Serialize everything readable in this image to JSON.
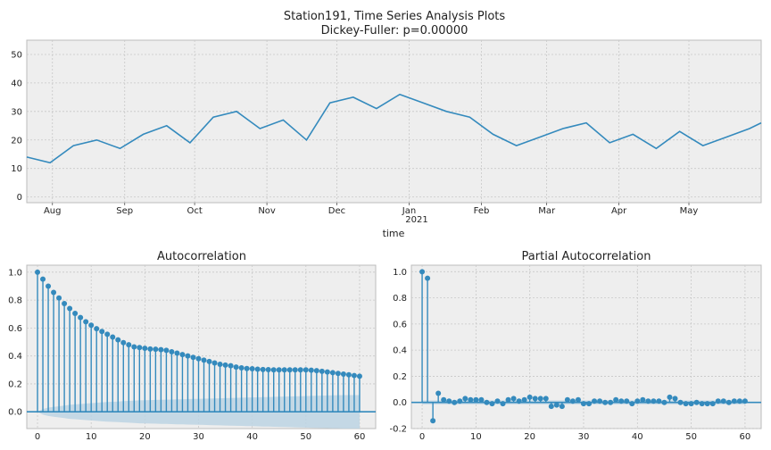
{
  "figure": {
    "suptitle_line1": "Station191, Time Series Analysis Plots",
    "suptitle_line2": "Dickey-Fuller: p=0.00000"
  },
  "colors": {
    "series": "#348abd",
    "panel_bg": "#eeeeee",
    "grid": "#c8c8c8",
    "confidence_band": "#bcd3e3"
  },
  "chart_data": [
    {
      "type": "line",
      "title": "",
      "xlabel": "time",
      "ylabel": "",
      "ylim": [
        -2,
        55
      ],
      "yticks": [
        0,
        10,
        20,
        30,
        40,
        50
      ],
      "xtick_labels": [
        "Aug",
        "Sep",
        "Oct",
        "Nov",
        "Dec",
        "Jan",
        "Feb",
        "Mar",
        "Apr",
        "May"
      ],
      "xtick_sublabel": "2021",
      "x_range": [
        "2020-07-21",
        "2021-06-01"
      ],
      "series": [
        {
          "x": [
            "2020-07-21",
            "2020-07-31",
            "2020-08-10",
            "2020-08-20",
            "2020-08-30",
            "2020-09-09",
            "2020-09-19",
            "2020-09-29",
            "2020-10-09",
            "2020-10-19",
            "2020-10-29",
            "2020-11-08",
            "2020-11-18",
            "2020-11-28",
            "2020-12-08",
            "2020-12-18",
            "2020-12-28",
            "2021-01-07",
            "2021-01-17",
            "2021-01-27",
            "2021-02-06",
            "2021-02-16",
            "2021-02-26",
            "2021-03-08",
            "2021-03-18",
            "2021-03-28",
            "2021-04-07",
            "2021-04-17",
            "2021-04-27",
            "2021-05-07",
            "2021-05-17",
            "2021-05-27",
            "2021-06-01"
          ],
          "values": [
            14,
            12,
            18,
            20,
            17,
            22,
            25,
            19,
            28,
            30,
            24,
            27,
            20,
            33,
            35,
            31,
            36,
            33,
            30,
            28,
            22,
            18,
            21,
            24,
            26,
            19,
            22,
            17,
            23,
            18,
            21,
            24,
            26
          ]
        }
      ]
    },
    {
      "type": "bar",
      "title": "Autocorrelation",
      "xlabel": "",
      "ylabel": "",
      "xlim": [
        -2,
        63
      ],
      "ylim": [
        -0.12,
        1.05
      ],
      "xticks": [
        0,
        10,
        20,
        30,
        40,
        50,
        60
      ],
      "yticks": [
        0.0,
        0.2,
        0.4,
        0.6,
        0.8,
        1.0
      ],
      "lags": [
        0,
        1,
        2,
        3,
        4,
        5,
        6,
        7,
        8,
        9,
        10,
        11,
        12,
        13,
        14,
        15,
        16,
        17,
        18,
        19,
        20,
        21,
        22,
        23,
        24,
        25,
        26,
        27,
        28,
        29,
        30,
        31,
        32,
        33,
        34,
        35,
        36,
        37,
        38,
        39,
        40,
        41,
        42,
        43,
        44,
        45,
        46,
        47,
        48,
        49,
        50,
        51,
        52,
        53,
        54,
        55,
        56,
        57,
        58,
        59,
        60
      ],
      "values": [
        1.0,
        0.95,
        0.9,
        0.855,
        0.815,
        0.775,
        0.74,
        0.705,
        0.675,
        0.645,
        0.62,
        0.595,
        0.575,
        0.555,
        0.535,
        0.515,
        0.495,
        0.48,
        0.465,
        0.46,
        0.455,
        0.45,
        0.448,
        0.445,
        0.44,
        0.43,
        0.42,
        0.41,
        0.4,
        0.39,
        0.38,
        0.37,
        0.36,
        0.35,
        0.34,
        0.335,
        0.33,
        0.32,
        0.315,
        0.31,
        0.308,
        0.305,
        0.303,
        0.302,
        0.3,
        0.3,
        0.3,
        0.3,
        0.3,
        0.3,
        0.3,
        0.298,
        0.295,
        0.29,
        0.285,
        0.28,
        0.275,
        0.27,
        0.265,
        0.26,
        0.255
      ],
      "confidence_upper": [
        0.0,
        0.02,
        0.03,
        0.035,
        0.04,
        0.045,
        0.05,
        0.053,
        0.056,
        0.059,
        0.062,
        0.065,
        0.068,
        0.07,
        0.072,
        0.074,
        0.076,
        0.078,
        0.08,
        0.082,
        0.083,
        0.084,
        0.085,
        0.086,
        0.087,
        0.088,
        0.089,
        0.09,
        0.091,
        0.092,
        0.093,
        0.094,
        0.095,
        0.096,
        0.097,
        0.098,
        0.099,
        0.1,
        0.101,
        0.102,
        0.103,
        0.104,
        0.105,
        0.106,
        0.107,
        0.108,
        0.109,
        0.11,
        0.111,
        0.112,
        0.113,
        0.114,
        0.115,
        0.116,
        0.117,
        0.118,
        0.119,
        0.12,
        0.12,
        0.12,
        0.12
      ]
    },
    {
      "type": "bar",
      "title": "Partial Autocorrelation",
      "xlabel": "",
      "ylabel": "",
      "xlim": [
        -2,
        63
      ],
      "ylim": [
        -0.2,
        1.05
      ],
      "xticks": [
        0,
        10,
        20,
        30,
        40,
        50,
        60
      ],
      "yticks": [
        -0.2,
        0.0,
        0.2,
        0.4,
        0.6,
        0.8,
        1.0
      ],
      "lags": [
        0,
        1,
        2,
        3,
        4,
        5,
        6,
        7,
        8,
        9,
        10,
        11,
        12,
        13,
        14,
        15,
        16,
        17,
        18,
        19,
        20,
        21,
        22,
        23,
        24,
        25,
        26,
        27,
        28,
        29,
        30,
        31,
        32,
        33,
        34,
        35,
        36,
        37,
        38,
        39,
        40,
        41,
        42,
        43,
        44,
        45,
        46,
        47,
        48,
        49,
        50,
        51,
        52,
        53,
        54,
        55,
        56,
        57,
        58,
        59,
        60
      ],
      "values": [
        1.0,
        0.95,
        -0.14,
        0.07,
        0.02,
        0.01,
        0.0,
        0.01,
        0.03,
        0.02,
        0.02,
        0.02,
        0.0,
        -0.01,
        0.01,
        -0.01,
        0.02,
        0.03,
        0.01,
        0.02,
        0.04,
        0.03,
        0.03,
        0.03,
        -0.03,
        -0.02,
        -0.03,
        0.02,
        0.01,
        0.02,
        -0.01,
        -0.01,
        0.01,
        0.01,
        0.0,
        0.0,
        0.02,
        0.01,
        0.01,
        -0.01,
        0.01,
        0.02,
        0.01,
        0.01,
        0.01,
        0.0,
        0.04,
        0.03,
        0.0,
        -0.01,
        -0.01,
        0.0,
        -0.01,
        -0.01,
        -0.01,
        0.01,
        0.01,
        0.0,
        0.01,
        0.01,
        0.01
      ],
      "confidence_upper": 0.015
    }
  ]
}
